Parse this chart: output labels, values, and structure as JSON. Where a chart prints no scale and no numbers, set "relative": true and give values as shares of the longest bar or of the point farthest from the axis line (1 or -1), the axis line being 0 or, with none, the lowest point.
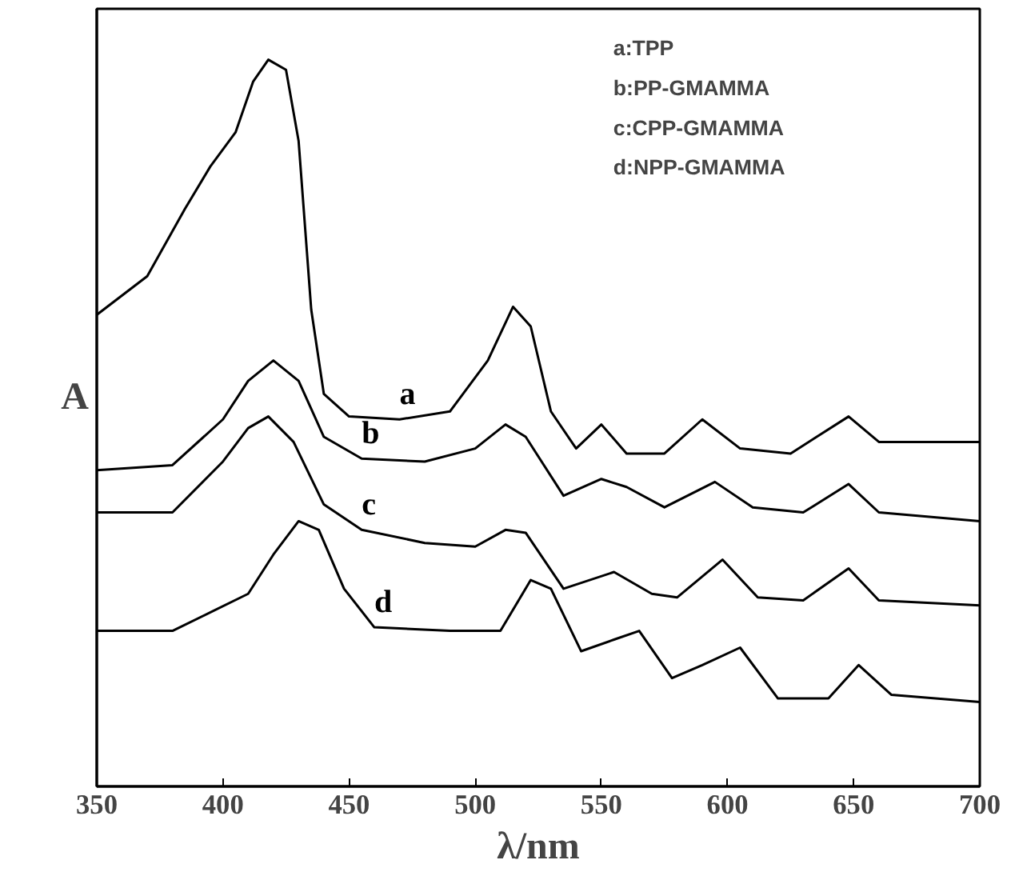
{
  "chart_data": {
    "type": "line",
    "relative": true,
    "xlabel": "λ/nm",
    "ylabel": "A",
    "xlim": [
      350,
      700
    ],
    "xticks": [
      350,
      400,
      450,
      500,
      550,
      600,
      650,
      700
    ],
    "grid": false,
    "marker": "none",
    "line_style": "solid",
    "annotations": [
      "a:TPP",
      "b:PP-GMAMMA",
      "c:CPP-GMAMMA",
      "d:NPP-GMAMMA"
    ],
    "series": [
      {
        "name": "a",
        "color": "#000000",
        "x": [
          350,
          370,
          385,
          395,
          405,
          412,
          418,
          425,
          430,
          435,
          440,
          450,
          470,
          490,
          505,
          515,
          522,
          530,
          540,
          550,
          560,
          575,
          590,
          605,
          625,
          648,
          660,
          700
        ],
        "values": [
          0.649,
          0.702,
          0.795,
          0.853,
          0.9,
          0.97,
          1.0,
          0.986,
          0.888,
          0.656,
          0.54,
          0.509,
          0.505,
          0.516,
          0.586,
          0.66,
          0.633,
          0.516,
          0.465,
          0.498,
          0.458,
          0.458,
          0.505,
          0.465,
          0.458,
          0.509,
          0.474,
          0.474
        ]
      },
      {
        "name": "b",
        "color": "#000000",
        "x": [
          350,
          380,
          400,
          410,
          420,
          430,
          440,
          455,
          480,
          500,
          512,
          520,
          535,
          550,
          560,
          575,
          595,
          610,
          630,
          648,
          660,
          700
        ],
        "values": [
          0.435,
          0.442,
          0.505,
          0.558,
          0.586,
          0.558,
          0.481,
          0.451,
          0.447,
          0.465,
          0.498,
          0.481,
          0.4,
          0.423,
          0.412,
          0.384,
          0.419,
          0.384,
          0.377,
          0.416,
          0.377,
          0.365
        ]
      },
      {
        "name": "c",
        "color": "#000000",
        "x": [
          350,
          380,
          400,
          410,
          418,
          428,
          440,
          455,
          480,
          500,
          512,
          520,
          535,
          555,
          570,
          580,
          598,
          612,
          630,
          648,
          660,
          700
        ],
        "values": [
          0.377,
          0.377,
          0.447,
          0.493,
          0.509,
          0.474,
          0.388,
          0.353,
          0.335,
          0.33,
          0.353,
          0.349,
          0.272,
          0.295,
          0.265,
          0.26,
          0.312,
          0.26,
          0.256,
          0.3,
          0.256,
          0.249
        ]
      },
      {
        "name": "d",
        "color": "#000000",
        "x": [
          350,
          380,
          410,
          420,
          430,
          438,
          448,
          460,
          490,
          510,
          522,
          530,
          542,
          555,
          565,
          578,
          590,
          605,
          620,
          640,
          652,
          665,
          700
        ],
        "values": [
          0.214,
          0.214,
          0.265,
          0.319,
          0.365,
          0.353,
          0.272,
          0.219,
          0.214,
          0.214,
          0.284,
          0.272,
          0.186,
          0.202,
          0.214,
          0.149,
          0.167,
          0.191,
          0.121,
          0.121,
          0.167,
          0.126,
          0.116
        ]
      }
    ]
  }
}
